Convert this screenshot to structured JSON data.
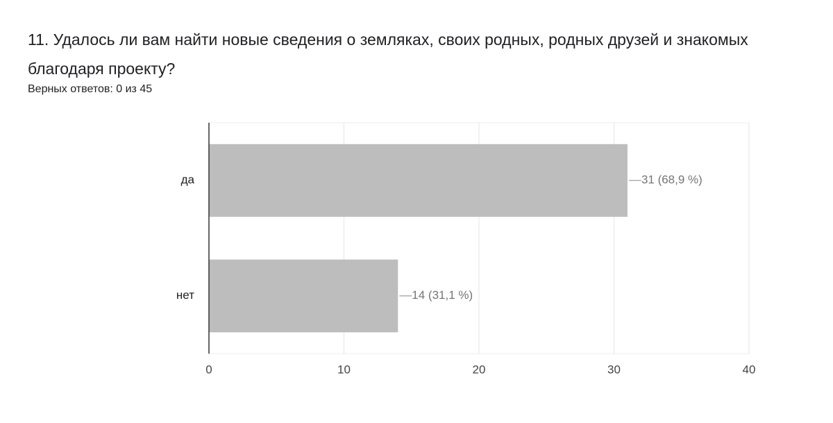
{
  "chart_data": {
    "type": "bar",
    "orientation": "horizontal",
    "title": "11. Удалось ли вам найти новые сведения о земляках, своих родных, родных друзей и знакомых благодаря проекту?",
    "subtitle": "Верных ответов: 0 из 45",
    "categories": [
      "да",
      "нет"
    ],
    "values": [
      31,
      14
    ],
    "value_labels": [
      "31 (68,9 %)",
      "14 (31,1 %)"
    ],
    "color": "#bdbdbd",
    "xlim": [
      0,
      40
    ],
    "xticks": [
      0,
      10,
      20,
      30,
      40
    ],
    "grid": true
  }
}
